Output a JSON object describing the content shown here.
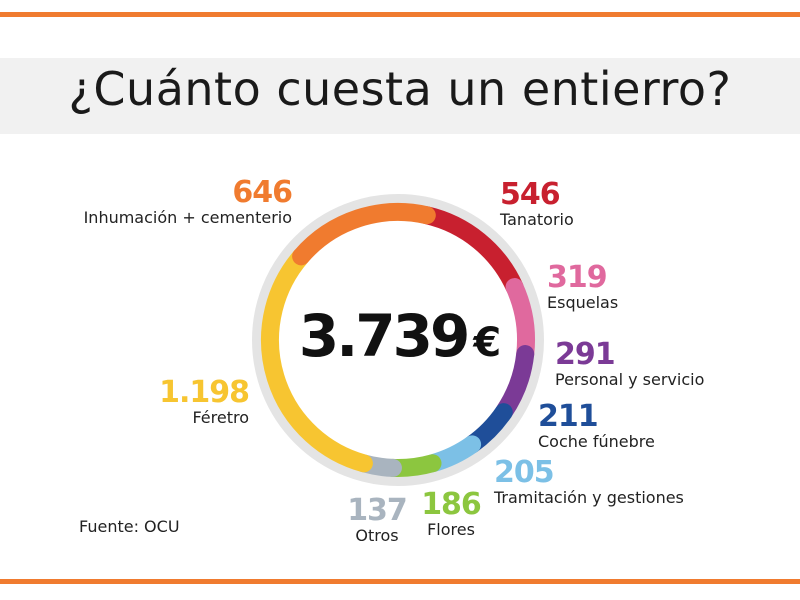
{
  "header": {
    "title": "¿Cuánto cuesta un entierro?"
  },
  "total": {
    "value": "3.739",
    "currency": "€"
  },
  "source": "Fuente: OCU",
  "colors": {
    "accent_rule": "#f07b2f",
    "ring_track": "#e4e4e4"
  },
  "chart_data": {
    "type": "pie",
    "variant": "donut",
    "total": 3739,
    "unit": "€",
    "slices": [
      {
        "label": "Tanatorio",
        "value": 546,
        "value_text": "546",
        "color": "#c8202f"
      },
      {
        "label": "Esquelas",
        "value": 319,
        "value_text": "319",
        "color": "#e0699e"
      },
      {
        "label": "Personal y servicio",
        "value": 291,
        "value_text": "291",
        "color": "#7b3a96"
      },
      {
        "label": "Coche fúnebre",
        "value": 211,
        "value_text": "211",
        "color": "#1f4e99"
      },
      {
        "label": "Tramitación y gestiones",
        "value": 205,
        "value_text": "205",
        "color": "#7cc0e6"
      },
      {
        "label": "Flores",
        "value": 186,
        "value_text": "186",
        "color": "#8cc63f"
      },
      {
        "label": "Otros",
        "value": 137,
        "value_text": "137",
        "color": "#a9b4bf"
      },
      {
        "label": "Féretro",
        "value": 1198,
        "value_text": "1.198",
        "color": "#f7c531"
      },
      {
        "label": "Inhumación + cementerio",
        "value": 646,
        "value_text": "646",
        "color": "#f07b2f"
      }
    ]
  }
}
